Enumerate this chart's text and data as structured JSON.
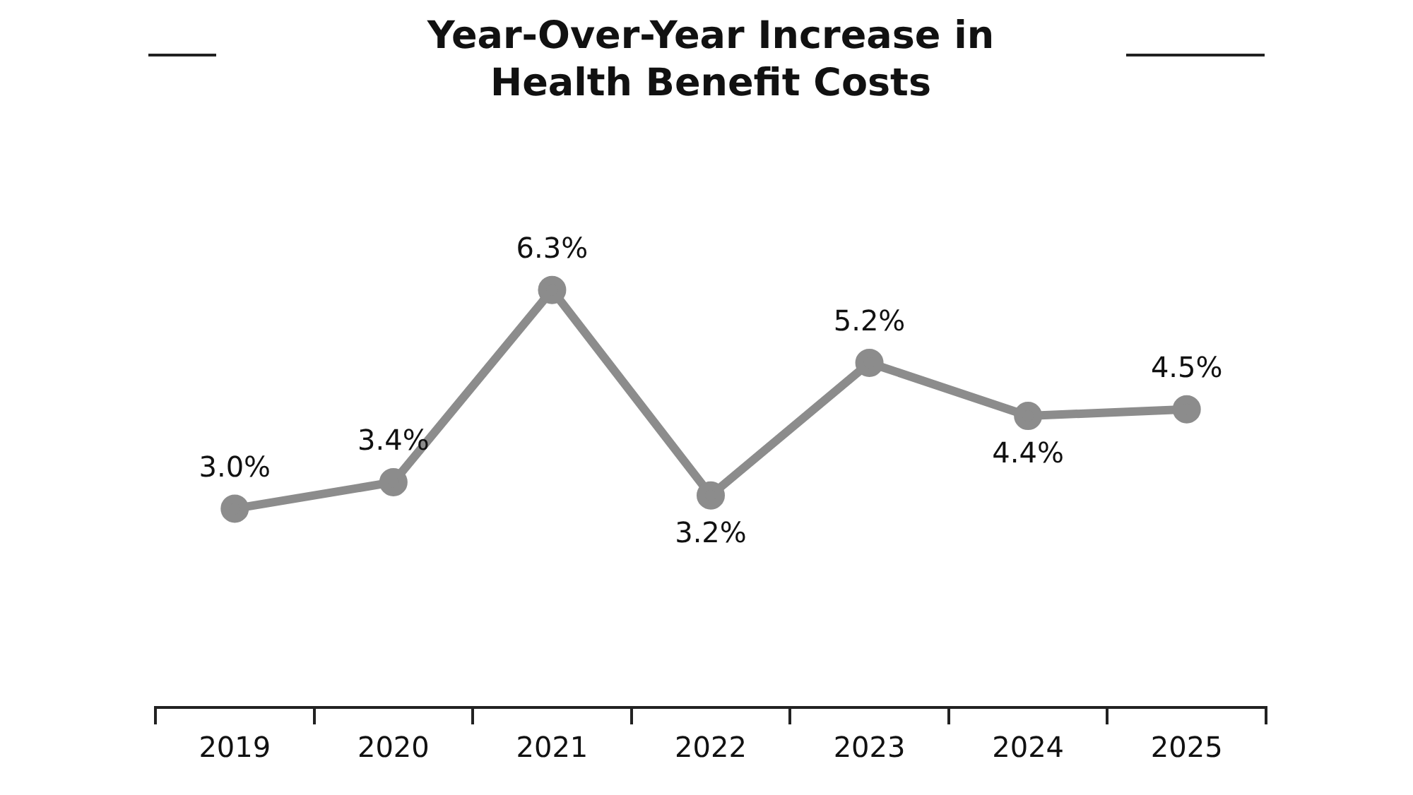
{
  "chart_data": {
    "type": "line",
    "title": "Year-Over-Year Increase in\nHealth Benefit Costs",
    "categories": [
      "2019",
      "2020",
      "2021",
      "2022",
      "2023",
      "2024",
      "2025"
    ],
    "series": [
      {
        "color": "#8c8c8c",
        "values": [
          3.0,
          3.4,
          6.3,
          3.2,
          5.2,
          4.4,
          4.5
        ],
        "value_labels": [
          "3.0%",
          "3.4%",
          "6.3%",
          "3.2%",
          "5.2%",
          "4.4%",
          "4.5%"
        ]
      }
    ],
    "marker": "circle",
    "line_style": "solid",
    "grid": false,
    "legend": false,
    "tick_labels": "x"
  }
}
